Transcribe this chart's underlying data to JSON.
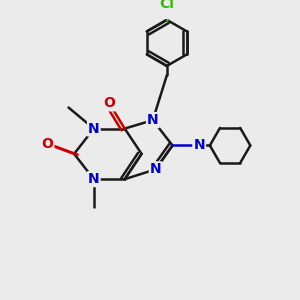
{
  "bg_color": "#ebebeb",
  "bond_color": "#1a1a1a",
  "n_color": "#0000cc",
  "o_color": "#cc0000",
  "cl_color": "#33bb00",
  "line_width": 1.8,
  "font_size_atom": 10,
  "font_size_small": 9,
  "font_size_cl": 10,
  "xlim": [
    0,
    10
  ],
  "ylim": [
    0,
    10
  ]
}
